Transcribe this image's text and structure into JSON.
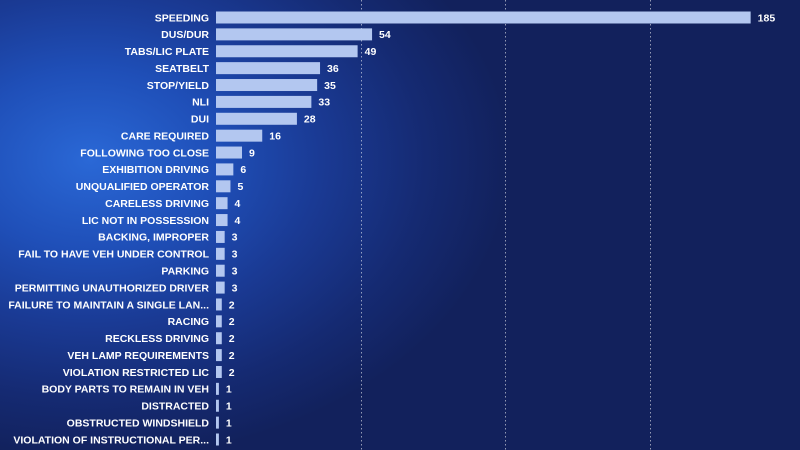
{
  "chart_data": {
    "type": "bar",
    "orientation": "horizontal",
    "categories": [
      "SPEEDING",
      "DUS/DUR",
      "TABS/LIC PLATE",
      "SEATBELT",
      "STOP/YIELD",
      "NLI",
      "DUI",
      "CARE REQUIRED",
      "FOLLOWING TOO CLOSE",
      "EXHIBITION DRIVING",
      "UNQUALIFIED OPERATOR",
      "CARELESS DRIVING",
      "LIC NOT IN POSSESSION",
      "BACKING, IMPROPER",
      "FAIL TO HAVE VEH UNDER CONTROL",
      "PARKING",
      "PERMITTING UNAUTHORIZED DRIVER",
      "FAILURE TO MAINTAIN A SINGLE LAN...",
      "RACING",
      "RECKLESS DRIVING",
      "VEH LAMP REQUIREMENTS",
      "VIOLATION RESTRICTED LIC",
      "BODY PARTS TO REMAIN IN VEH",
      "DISTRACTED",
      "OBSTRUCTED WINDSHIELD",
      "VIOLATION OF INSTRUCTIONAL PER..."
    ],
    "values": [
      185,
      54,
      49,
      36,
      35,
      33,
      28,
      16,
      9,
      6,
      5,
      4,
      4,
      3,
      3,
      3,
      3,
      2,
      2,
      2,
      2,
      2,
      1,
      1,
      1,
      1
    ],
    "xlim": [
      0,
      200
    ],
    "gridlines_at": [
      50,
      100,
      150
    ],
    "grid": true,
    "data_labels": true,
    "bar_color": "#b3c7f0",
    "label_color": "#ffffff",
    "gridline_color": "#ffffff",
    "title": "",
    "xlabel": "",
    "ylabel": ""
  }
}
